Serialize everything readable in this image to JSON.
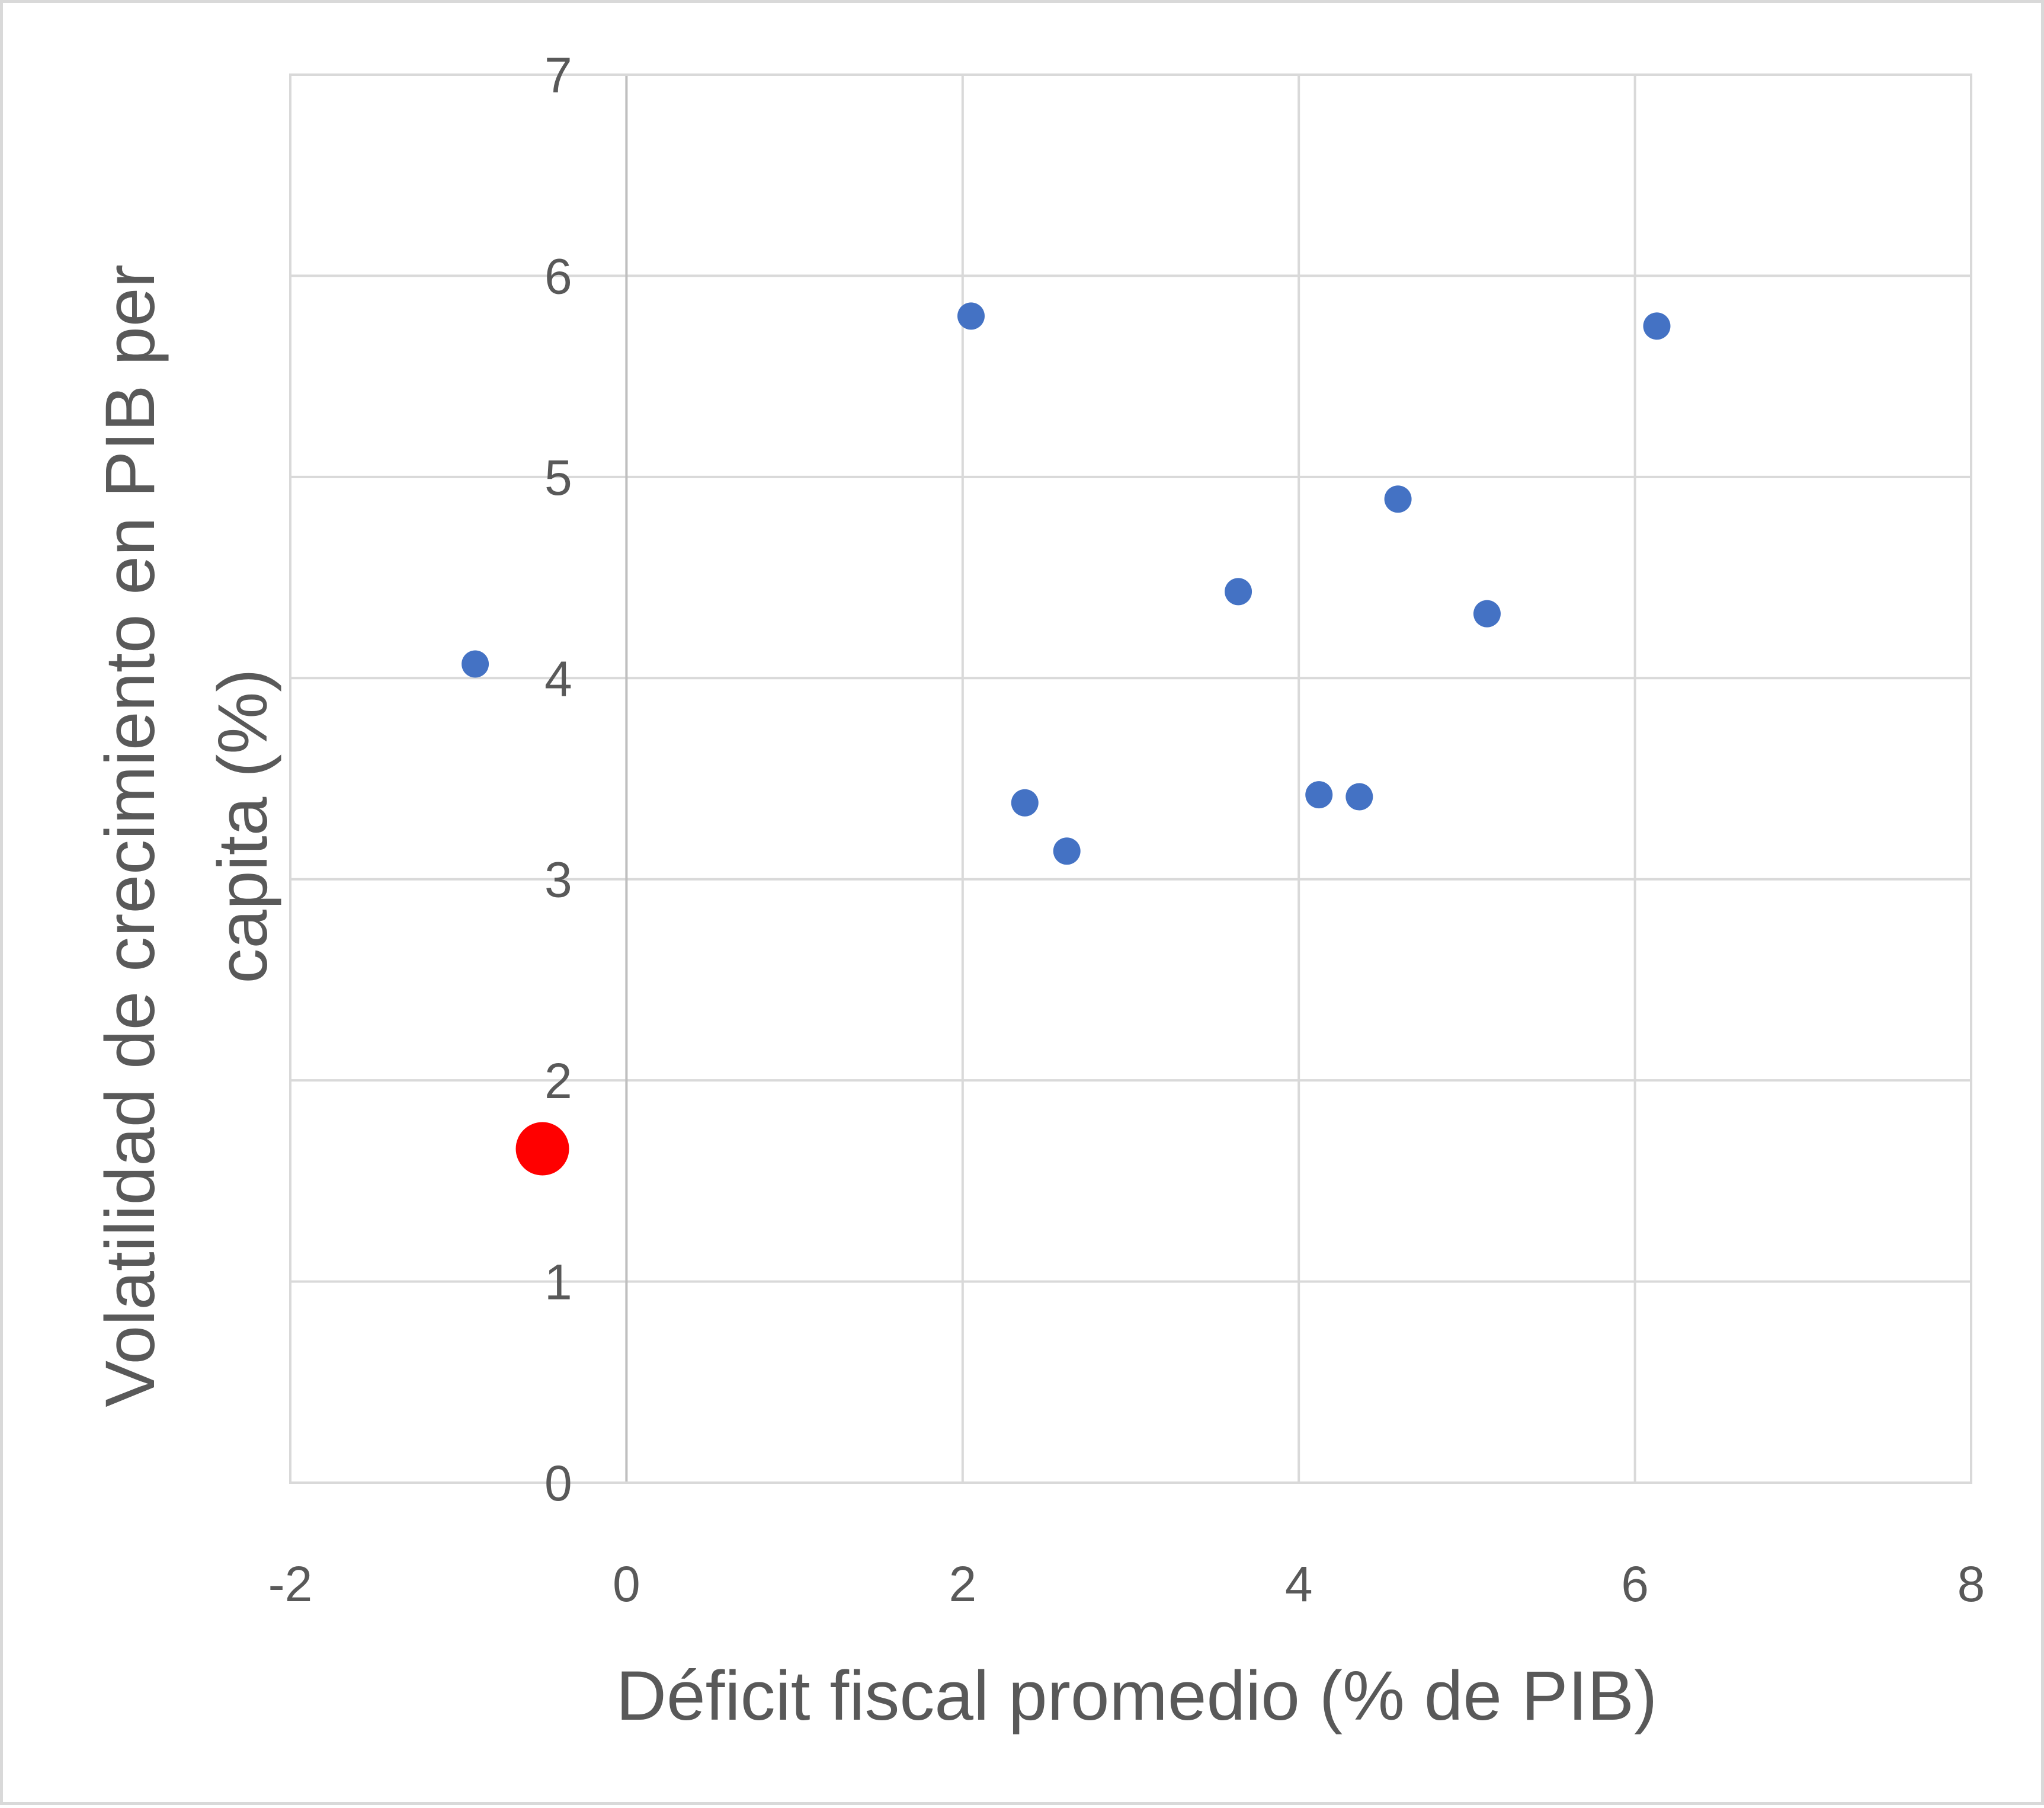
{
  "chart_data": {
    "type": "scatter",
    "title": "",
    "xlabel": "Déficit fiscal promedio (% de PIB)",
    "ylabel_lines": [
      "Volatilidad de crecimiento en PIB per",
      "capita (%)"
    ],
    "xlim": [
      -2,
      8
    ],
    "ylim": [
      0,
      7
    ],
    "x_ticks": [
      -2,
      0,
      2,
      4,
      6,
      8
    ],
    "y_ticks": [
      0,
      1,
      2,
      3,
      4,
      5,
      6,
      7
    ],
    "x_tick_labels": [
      "-2",
      "0",
      "2",
      "4",
      "6",
      "8"
    ],
    "y_tick_labels": [
      "0",
      "1",
      "2",
      "3",
      "4",
      "5",
      "6",
      "7"
    ],
    "grid": true,
    "legend": "none",
    "series": [
      {
        "color": "#4472c4",
        "points": [
          {
            "x": -0.9,
            "y": 4.07
          },
          {
            "x": 2.05,
            "y": 5.8
          },
          {
            "x": 2.37,
            "y": 3.38
          },
          {
            "x": 2.62,
            "y": 3.14
          },
          {
            "x": 3.64,
            "y": 4.43
          },
          {
            "x": 4.12,
            "y": 3.42
          },
          {
            "x": 4.36,
            "y": 3.41
          },
          {
            "x": 4.59,
            "y": 4.89
          },
          {
            "x": 5.12,
            "y": 4.32
          },
          {
            "x": 6.13,
            "y": 5.75
          }
        ]
      },
      {
        "color": "#ff0000",
        "highlight": true,
        "points": [
          {
            "x": -0.5,
            "y": 1.66
          }
        ]
      }
    ]
  }
}
